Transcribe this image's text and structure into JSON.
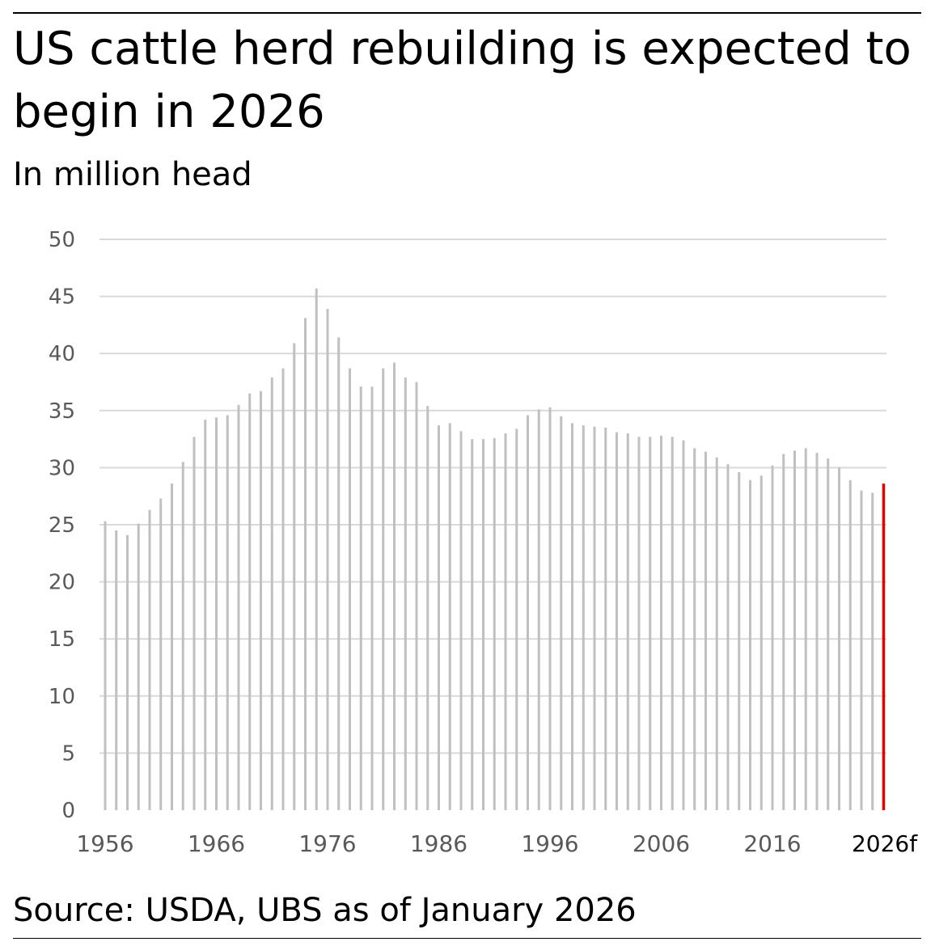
{
  "header": {
    "title": "US cattle herd rebuilding is expected to begin in 2026",
    "subtitle": "In million head"
  },
  "footer": {
    "source": "Source: USDA, UBS as of January 2026"
  },
  "colors": {
    "bar": "#c0c0c0",
    "highlight": "#e60000",
    "grid": "#d9d9d9",
    "axis_text": "#595959"
  },
  "chart_data": {
    "type": "bar",
    "title": "US cattle herd rebuilding is expected to begin in 2026",
    "subtitle": "In million head",
    "xlabel": "",
    "ylabel": "",
    "ylim": [
      0,
      50
    ],
    "yticks": [
      0,
      5,
      10,
      15,
      20,
      25,
      30,
      35,
      40,
      45,
      50
    ],
    "grid": true,
    "x_tick_labels": [
      "1956",
      "1966",
      "1976",
      "1986",
      "1996",
      "2006",
      "2016",
      "2026f"
    ],
    "categories": [
      "1956",
      "1957",
      "1958",
      "1959",
      "1960",
      "1961",
      "1962",
      "1963",
      "1964",
      "1965",
      "1966",
      "1967",
      "1968",
      "1969",
      "1970",
      "1971",
      "1972",
      "1973",
      "1974",
      "1975",
      "1976",
      "1977",
      "1978",
      "1979",
      "1980",
      "1981",
      "1982",
      "1983",
      "1984",
      "1985",
      "1986",
      "1987",
      "1988",
      "1989",
      "1990",
      "1991",
      "1992",
      "1993",
      "1994",
      "1995",
      "1996",
      "1997",
      "1998",
      "1999",
      "2000",
      "2001",
      "2002",
      "2003",
      "2004",
      "2005",
      "2006",
      "2007",
      "2008",
      "2009",
      "2010",
      "2011",
      "2012",
      "2013",
      "2014",
      "2015",
      "2016",
      "2017",
      "2018",
      "2019",
      "2020",
      "2021",
      "2022",
      "2023",
      "2024",
      "2025",
      "2026f"
    ],
    "values": [
      25.3,
      24.5,
      24.1,
      25.1,
      26.3,
      27.3,
      28.6,
      30.5,
      32.7,
      34.2,
      34.4,
      34.6,
      35.5,
      36.5,
      36.7,
      37.9,
      38.7,
      40.9,
      43.1,
      45.7,
      43.9,
      41.4,
      38.7,
      37.1,
      37.1,
      38.7,
      39.2,
      37.9,
      37.5,
      35.4,
      33.7,
      33.9,
      33.2,
      32.5,
      32.5,
      32.6,
      33.0,
      33.4,
      34.6,
      35.1,
      35.3,
      34.5,
      33.9,
      33.7,
      33.6,
      33.5,
      33.1,
      33.0,
      32.7,
      32.7,
      32.8,
      32.7,
      32.4,
      31.7,
      31.4,
      30.9,
      30.3,
      29.6,
      28.9,
      29.3,
      30.2,
      31.2,
      31.5,
      31.7,
      31.3,
      30.8,
      30.0,
      28.9,
      28.0,
      27.8,
      28.6
    ],
    "highlight_category": "2026f"
  }
}
